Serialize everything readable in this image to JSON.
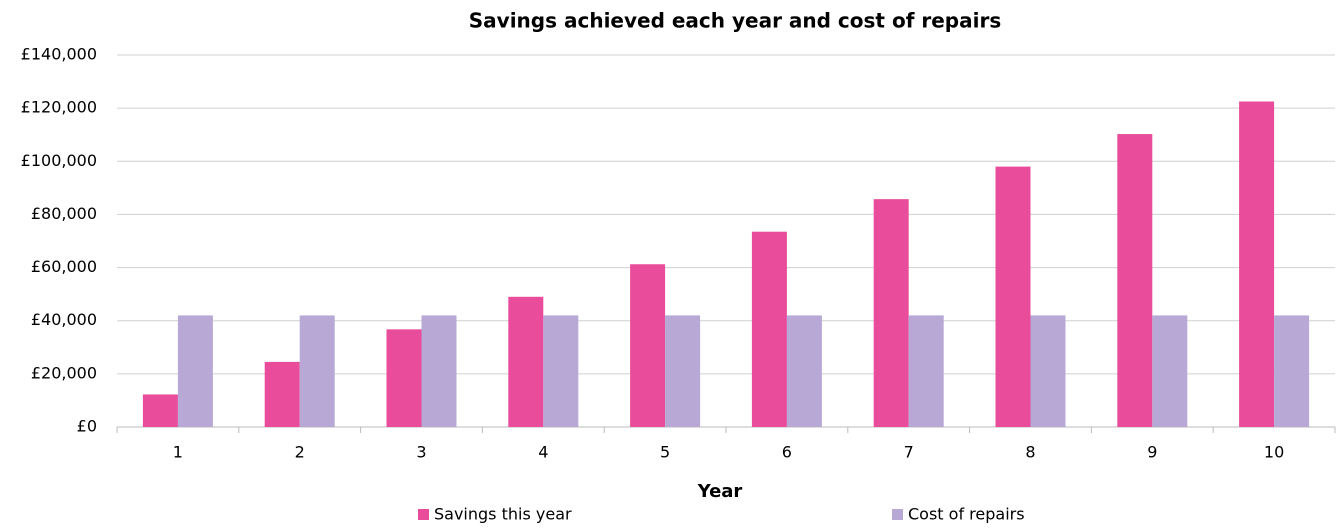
{
  "chart_data": {
    "type": "bar",
    "title": "Savings achieved each year and cost of repairs",
    "x_label": "Year",
    "categories": [
      "1",
      "2",
      "3",
      "4",
      "5",
      "6",
      "7",
      "8",
      "9",
      "10"
    ],
    "series": [
      {
        "name": "Savings this year",
        "color": "#e84c9a",
        "values": [
          12250,
          24500,
          36750,
          49000,
          61250,
          73500,
          85750,
          98000,
          110250,
          122500
        ]
      },
      {
        "name": "Cost of repairs",
        "color": "#b7a8d5",
        "values": [
          42000,
          42000,
          42000,
          42000,
          42000,
          42000,
          42000,
          42000,
          42000,
          42000
        ]
      }
    ],
    "ylim": [
      0,
      140000
    ],
    "yticks": [
      {
        "value": 0,
        "label": "£0"
      },
      {
        "value": 20000,
        "label": "£20,000"
      },
      {
        "value": 40000,
        "label": "£40,000"
      },
      {
        "value": 60000,
        "label": "£60,000"
      },
      {
        "value": 80000,
        "label": "£80,000"
      },
      {
        "value": 100000,
        "label": "£100,000"
      },
      {
        "value": 120000,
        "label": "£120,000"
      },
      {
        "value": 140000,
        "label": "£140,000"
      }
    ],
    "grid": true,
    "legend": "bottom"
  }
}
